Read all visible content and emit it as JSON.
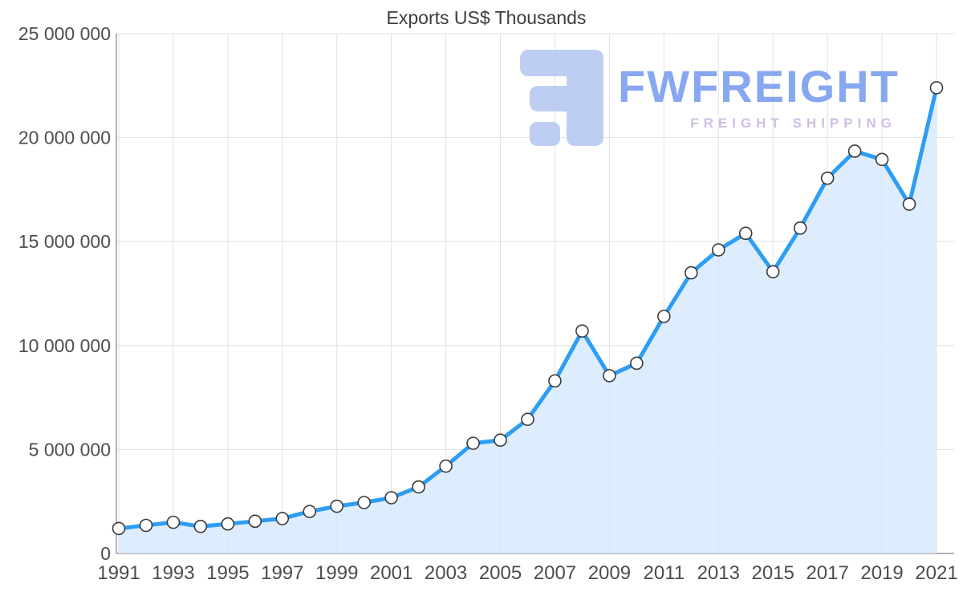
{
  "watermark": {
    "brand": "FWFREIGHT",
    "tagline": "FREIGHT SHIPPING",
    "logo_color": "#b7c9f1"
  },
  "chart_data": {
    "type": "area-line",
    "title": "Exports US$ Thousands",
    "xlabel": "",
    "ylabel": "",
    "grid": true,
    "legend": "none",
    "x": [
      1991,
      1992,
      1993,
      1994,
      1995,
      1996,
      1997,
      1998,
      1999,
      2000,
      2001,
      2002,
      2003,
      2004,
      2005,
      2006,
      2007,
      2008,
      2009,
      2010,
      2011,
      2012,
      2013,
      2014,
      2015,
      2016,
      2017,
      2018,
      2019,
      2020,
      2021
    ],
    "values": [
      1200000,
      1350000,
      1500000,
      1300000,
      1420000,
      1550000,
      1680000,
      2020000,
      2270000,
      2450000,
      2680000,
      3200000,
      4200000,
      5300000,
      5450000,
      6450000,
      8300000,
      10700000,
      8550000,
      9150000,
      11400000,
      13500000,
      14600000,
      15400000,
      13550000,
      15650000,
      18050000,
      19350000,
      18950000,
      16800000,
      22400000
    ],
    "ylim": [
      0,
      25000000
    ],
    "y_ticks": [
      0,
      5000000,
      10000000,
      15000000,
      20000000,
      25000000
    ],
    "y_tick_labels": [
      "0",
      "5 000 000",
      "10 000 000",
      "15 000 000",
      "20 000 000",
      "25 000 000"
    ],
    "x_tick_step": 2,
    "colors": {
      "line": "#2e9df4",
      "fill": "#d4e9fc",
      "marker_fill": "#ffffff",
      "marker_stroke": "#3a3a3a",
      "grid": "#e2e2e2",
      "axis": "#9b9b9b",
      "label": "#4d4d4d",
      "title": "#3d3d3d"
    }
  }
}
